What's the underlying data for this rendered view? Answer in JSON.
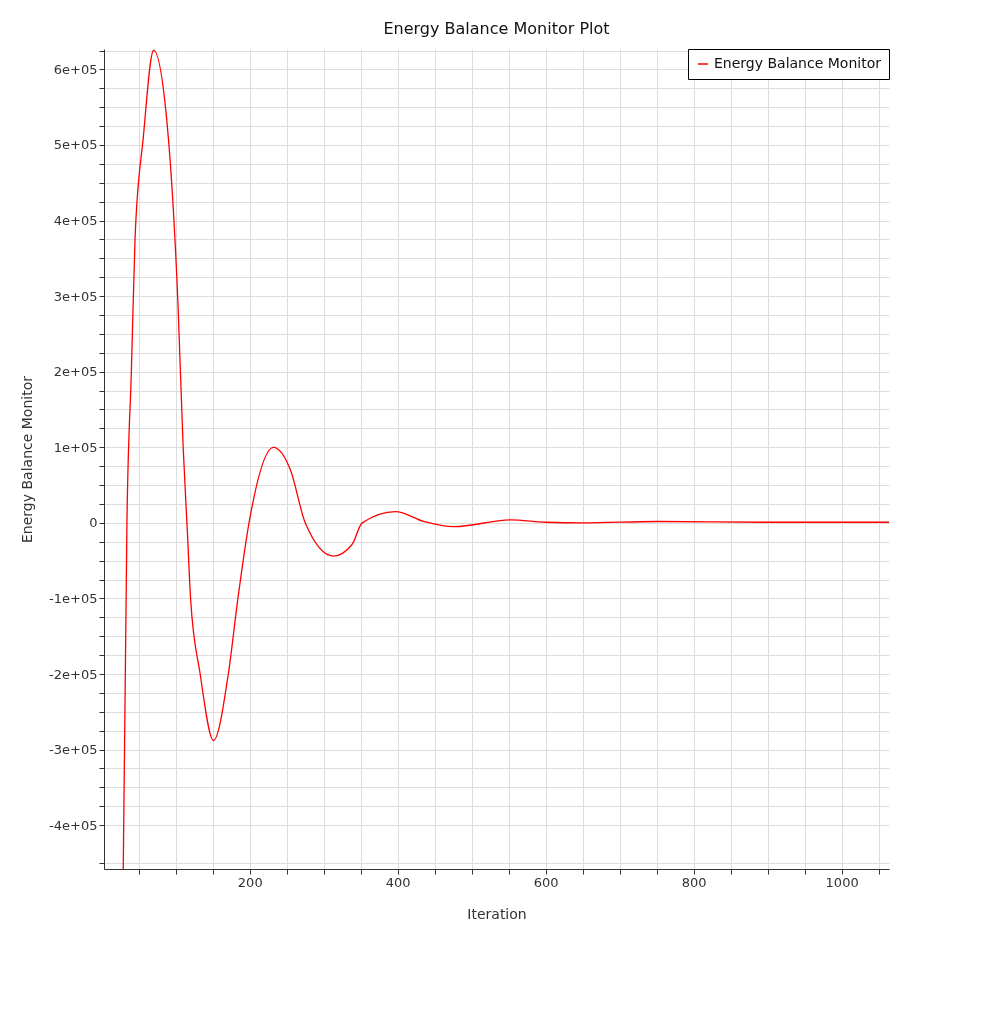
{
  "chart_data": {
    "type": "line",
    "title": "Energy Balance Monitor Plot",
    "xlabel": "Iteration",
    "ylabel": "Energy Balance Monitor",
    "x": [
      29,
      34,
      40,
      45,
      56,
      70,
      90,
      103,
      110,
      116,
      120,
      133,
      151,
      171,
      184,
      199,
      232,
      255,
      275,
      313,
      338,
      352,
      397,
      435,
      476,
      553,
      600,
      650,
      750,
      900,
      1064
    ],
    "series": [
      {
        "name": "Energy Balance Monitor",
        "color": "#ff0000",
        "values": [
          -458000,
          0,
          201000,
          377000,
          509000,
          625000,
          509000,
          289000,
          100000,
          -18000,
          -100000,
          -200000,
          -288000,
          -200000,
          -100000,
          0,
          100000,
          70000,
          0,
          -44000,
          -29000,
          0,
          15000,
          2000,
          -5000,
          4000,
          800,
          0,
          1800,
          800,
          800
        ]
      }
    ],
    "xlim": [
      3,
      1064
    ],
    "ylim": [
      -458000,
      627000
    ],
    "xticks": [
      {
        "value": 50,
        "label": null
      },
      {
        "value": 100,
        "label": null
      },
      {
        "value": 150,
        "label": null
      },
      200,
      {
        "value": 250,
        "label": null
      },
      {
        "value": 300,
        "label": null
      },
      {
        "value": 350,
        "label": null
      },
      400,
      {
        "value": 450,
        "label": null
      },
      {
        "value": 500,
        "label": null
      },
      {
        "value": 550,
        "label": null
      },
      600,
      {
        "value": 650,
        "label": null
      },
      {
        "value": 700,
        "label": null
      },
      {
        "value": 750,
        "label": null
      },
      800,
      {
        "value": 850,
        "label": null
      },
      {
        "value": 900,
        "label": null
      },
      {
        "value": 950,
        "label": null
      },
      1000,
      {
        "value": 1050,
        "label": null
      }
    ],
    "yticks": [
      {
        "value": -450000,
        "label": null
      },
      {
        "value": -400000,
        "label": "-4e+05"
      },
      {
        "value": -375000,
        "label": null
      },
      {
        "value": -350000,
        "label": null
      },
      {
        "value": -325000,
        "label": null
      },
      {
        "value": -300000,
        "label": "-3e+05"
      },
      {
        "value": -275000,
        "label": null
      },
      {
        "value": -250000,
        "label": null
      },
      {
        "value": -225000,
        "label": null
      },
      {
        "value": -200000,
        "label": "-2e+05"
      },
      {
        "value": -175000,
        "label": null
      },
      {
        "value": -150000,
        "label": null
      },
      {
        "value": -125000,
        "label": null
      },
      {
        "value": -100000,
        "label": "-1e+05"
      },
      {
        "value": -75000,
        "label": null
      },
      {
        "value": -50000,
        "label": null
      },
      {
        "value": -25000,
        "label": null
      },
      0,
      {
        "value": 25000,
        "label": null
      },
      {
        "value": 50000,
        "label": null
      },
      {
        "value": 75000,
        "label": null
      },
      {
        "value": 100000,
        "label": "1e+05"
      },
      {
        "value": 125000,
        "label": null
      },
      {
        "value": 150000,
        "label": null
      },
      {
        "value": 175000,
        "label": null
      },
      {
        "value": 200000,
        "label": "2e+05"
      },
      {
        "value": 225000,
        "label": null
      },
      {
        "value": 250000,
        "label": null
      },
      {
        "value": 275000,
        "label": null
      },
      {
        "value": 300000,
        "label": "3e+05"
      },
      {
        "value": 325000,
        "label": null
      },
      {
        "value": 350000,
        "label": null
      },
      {
        "value": 375000,
        "label": null
      },
      {
        "value": 400000,
        "label": "4e+05"
      },
      {
        "value": 425000,
        "label": null
      },
      {
        "value": 450000,
        "label": null
      },
      {
        "value": 475000,
        "label": null
      },
      {
        "value": 500000,
        "label": "5e+05"
      },
      {
        "value": 525000,
        "label": null
      },
      {
        "value": 550000,
        "label": null
      },
      {
        "value": 575000,
        "label": null
      },
      {
        "value": 600000,
        "label": "6e+05"
      },
      {
        "value": 625000,
        "label": null
      }
    ],
    "grid": true,
    "legend": "top right",
    "line_style": "solid",
    "marker": "none"
  }
}
